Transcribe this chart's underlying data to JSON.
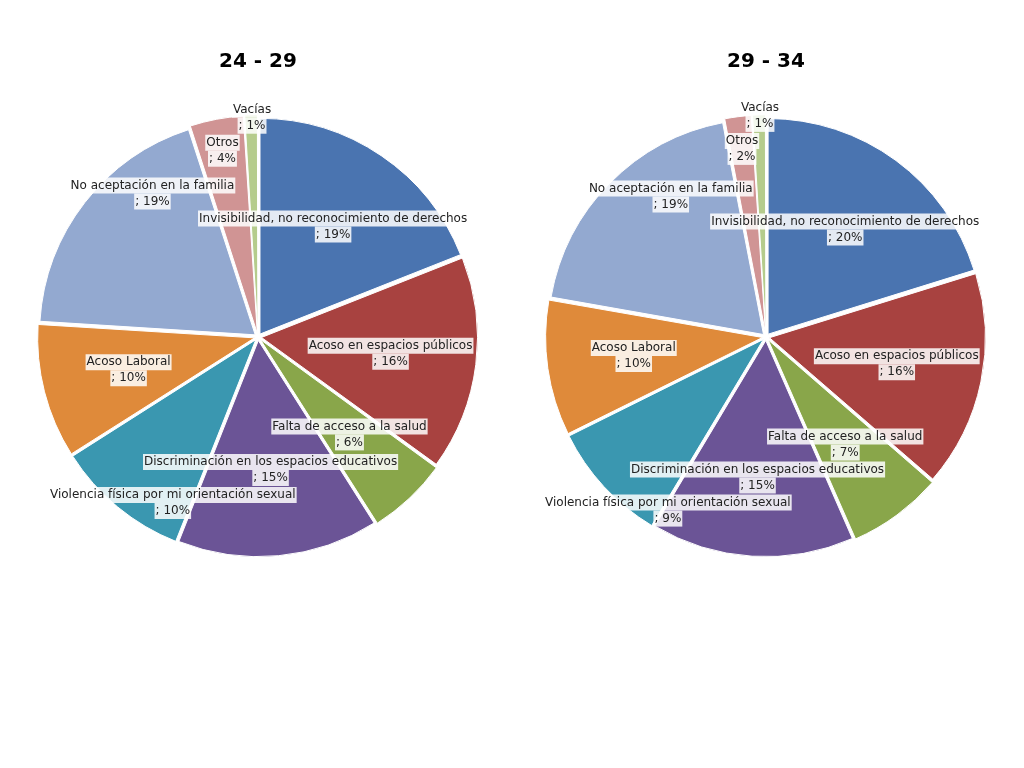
{
  "chart_data": [
    {
      "type": "pie",
      "title": "24 - 29",
      "categories": [
        "Invisibilidad, no reconocimiento de derechos",
        "Acoso en espacios públicos",
        "Falta de acceso a la salud",
        "Discriminación en los espacios educativos",
        "Violencia física por mi orientación sexual",
        "Acoso Laboral",
        "No aceptación en la familia",
        "Otros",
        "Vacías"
      ],
      "values": [
        19,
        16,
        6,
        15,
        10,
        10,
        19,
        4,
        1
      ],
      "value_labels": [
        "; 19%",
        "; 16%",
        "; 6%",
        "; 15%",
        "; 10%",
        "; 10%",
        "; 19%",
        "; 4%",
        "; 1%"
      ],
      "colors": [
        "#4a74b0",
        "#a84240",
        "#89a64a",
        "#6b5496",
        "#3a97b0",
        "#df8a3a",
        "#93a9d0",
        "#d09494",
        "#b5cc8c"
      ],
      "legend": false
    },
    {
      "type": "pie",
      "title": "29 - 34",
      "categories": [
        "Invisibilidad, no reconocimiento de derechos",
        "Acoso en espacios públicos",
        "Falta de acceso a la salud",
        "Discriminación en los espacios educativos",
        "Violencia física por mi orientación sexual",
        "Acoso Laboral",
        "No aceptación en la familia",
        "Otros",
        "Vacías"
      ],
      "values": [
        20,
        16,
        7,
        15,
        9,
        10,
        19,
        2,
        1
      ],
      "value_labels": [
        "; 20%",
        "; 16%",
        "; 7%",
        "; 15%",
        "; 9%",
        "; 10%",
        "; 19%",
        "; 2%",
        "; 1%"
      ],
      "colors": [
        "#4a74b0",
        "#a84240",
        "#89a64a",
        "#6b5496",
        "#3a97b0",
        "#df8a3a",
        "#93a9d0",
        "#d09494",
        "#b5cc8c"
      ],
      "legend": false
    }
  ]
}
